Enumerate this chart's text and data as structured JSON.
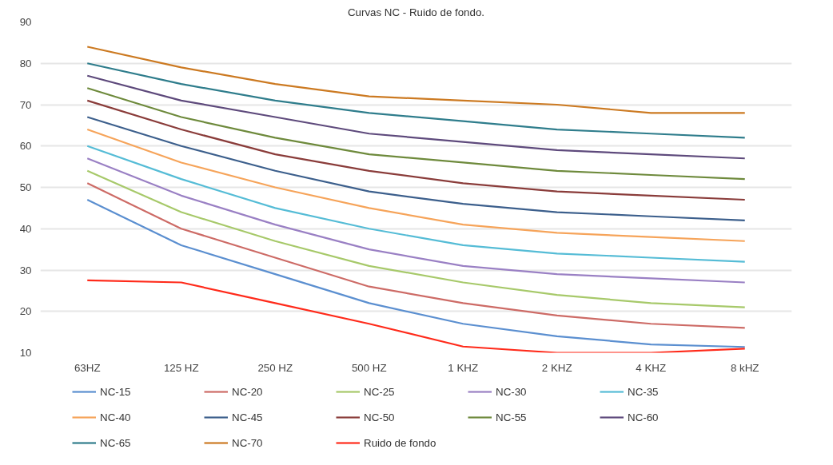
{
  "chart_data": {
    "type": "line",
    "title": "Curvas NC - Ruido de fondo.",
    "categories": [
      "63HZ",
      "125 HZ",
      "250 HZ",
      "500 HZ",
      "1 KHZ",
      "2 KHZ",
      "4 KHZ",
      "8 kHZ"
    ],
    "ylim": [
      10,
      90
    ],
    "yticks": [
      10,
      20,
      30,
      40,
      50,
      60,
      70,
      80,
      90
    ],
    "grid": "y",
    "legend": "bottom",
    "marker": "none",
    "line_style": "solid",
    "series": [
      {
        "name": "NC-15",
        "color": "#5b8fd0",
        "values": [
          47,
          36,
          29,
          22,
          17,
          14,
          12,
          11.4
        ]
      },
      {
        "name": "NC-20",
        "color": "#cd6b66",
        "values": [
          51,
          40,
          33,
          26,
          22,
          19,
          17,
          16
        ]
      },
      {
        "name": "NC-25",
        "color": "#a7c96a",
        "values": [
          54,
          44,
          37,
          31,
          27,
          24,
          22,
          21
        ]
      },
      {
        "name": "NC-30",
        "color": "#9a80c4",
        "values": [
          57,
          48,
          41,
          35,
          31,
          29,
          28,
          27
        ]
      },
      {
        "name": "NC-35",
        "color": "#55bcd6",
        "values": [
          60,
          52,
          45,
          40,
          36,
          34,
          33,
          32
        ]
      },
      {
        "name": "NC-40",
        "color": "#f6a45a",
        "values": [
          64,
          56,
          50,
          45,
          41,
          39,
          38,
          37
        ]
      },
      {
        "name": "NC-45",
        "color": "#3c5f8c",
        "values": [
          67,
          60,
          54,
          49,
          46,
          44,
          43,
          42
        ]
      },
      {
        "name": "NC-50",
        "color": "#8a3c3a",
        "values": [
          71,
          64,
          58,
          54,
          51,
          49,
          48,
          47
        ]
      },
      {
        "name": "NC-55",
        "color": "#6e8a3c",
        "values": [
          74,
          67,
          62,
          58,
          56,
          54,
          53,
          52
        ]
      },
      {
        "name": "NC-60",
        "color": "#5e4a7c",
        "values": [
          77,
          71,
          67,
          63,
          61,
          59,
          58,
          57
        ]
      },
      {
        "name": "NC-65",
        "color": "#2f7d8c",
        "values": [
          80,
          75,
          71,
          68,
          66,
          64,
          63,
          62
        ]
      },
      {
        "name": "NC-70",
        "color": "#cc7a22",
        "values": [
          84,
          79,
          75,
          72,
          71,
          70,
          68,
          68
        ]
      },
      {
        "name": "Ruido de fondo",
        "color": "#ff2a1a",
        "values": [
          27.5,
          27,
          22,
          17,
          11.5,
          10,
          10,
          11
        ]
      }
    ]
  }
}
